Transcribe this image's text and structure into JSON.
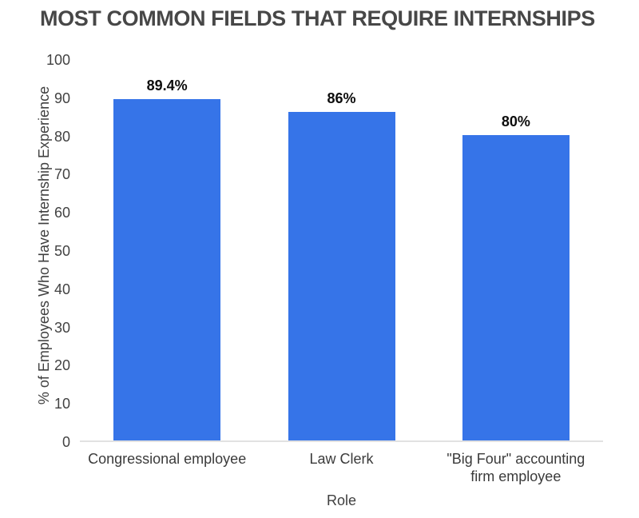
{
  "title": "MOST COMMON FIELDS THAT REQUIRE INTERNSHIPS",
  "chart_data": {
    "type": "bar",
    "title": "MOST COMMON FIELDS THAT REQUIRE INTERNSHIPS",
    "categories": [
      "Congressional employee",
      "Law Clerk",
      "\"Big Four\" accounting firm employee"
    ],
    "categories_display": [
      [
        "Congressional employee"
      ],
      [
        "Law Clerk"
      ],
      [
        "\"Big Four\" accounting",
        "firm employee"
      ]
    ],
    "values": [
      89.4,
      86,
      80
    ],
    "value_labels": [
      "89.4%",
      "86%",
      "80%"
    ],
    "xlabel": "Role",
    "ylabel": "% of Employees Who Have Internship Experience",
    "ylim": [
      0,
      100
    ],
    "yticks": [
      0,
      10,
      20,
      30,
      40,
      50,
      60,
      70,
      80,
      90,
      100
    ],
    "grid": false,
    "legend": "none"
  },
  "colors": {
    "bar": "#3674e8",
    "title_text": "#474747",
    "axis_text": "#424242",
    "category_text": "#3b3b3b",
    "data_label_text": "#0d0d0d",
    "baseline": "#e2e2e2",
    "background": "#ffffff"
  }
}
